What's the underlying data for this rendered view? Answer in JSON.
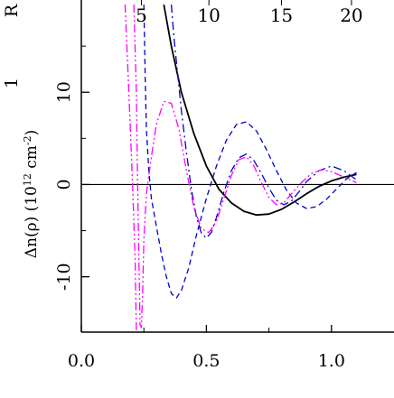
{
  "chart_data": {
    "type": "line",
    "title": "",
    "xlabel": "",
    "ylabel": "Δn(ρ) (10¹² cm⁻²)",
    "ylabel_parts": {
      "main": "Δn(ρ) (10",
      "exp1": "12",
      "mid": " cm",
      "exp2": "-2",
      "end": ")"
    },
    "xlim": [
      0.0,
      1.25
    ],
    "ylim": [
      -16,
      20
    ],
    "x_ticks": [
      "0.0",
      "0.5",
      "1.0"
    ],
    "x_tick_values": [
      0.0,
      0.5,
      1.0
    ],
    "y_ticks": [
      "-10",
      "0",
      "10"
    ],
    "y_tick_values": [
      -10,
      0,
      10
    ],
    "top_ticks": [
      "5",
      "10",
      "15",
      "20"
    ],
    "top_tick_positions": [
      0.24,
      0.51,
      0.8,
      1.08
    ],
    "partial_top_left_label": "R",
    "partial_left_label": "1",
    "zero_line": true,
    "grid": false,
    "legend": "none",
    "series": [
      {
        "style": "solid",
        "color": "#000000",
        "points": [
          [
            0.33,
            19.5
          ],
          [
            0.36,
            15
          ],
          [
            0.4,
            10
          ],
          [
            0.45,
            5.5
          ],
          [
            0.5,
            2
          ],
          [
            0.55,
            -0.5
          ],
          [
            0.6,
            -2
          ],
          [
            0.65,
            -2.9
          ],
          [
            0.7,
            -3.3
          ],
          [
            0.75,
            -3.2
          ],
          [
            0.8,
            -2.7
          ],
          [
            0.85,
            -1.9
          ],
          [
            0.9,
            -1.0
          ],
          [
            0.95,
            -0.2
          ],
          [
            1.0,
            0.4
          ],
          [
            1.05,
            0.8
          ],
          [
            1.1,
            1.1
          ]
        ]
      },
      {
        "style": "dash-dot",
        "color": "#0000cc",
        "points": [
          [
            0.36,
            19.5
          ],
          [
            0.37,
            16
          ],
          [
            0.385,
            12
          ],
          [
            0.4,
            8
          ],
          [
            0.42,
            3.5
          ],
          [
            0.44,
            -0.5
          ],
          [
            0.46,
            -3.5
          ],
          [
            0.48,
            -5.3
          ],
          [
            0.5,
            -5.8
          ],
          [
            0.52,
            -5.2
          ],
          [
            0.54,
            -3.6
          ],
          [
            0.57,
            -0.8
          ],
          [
            0.6,
            1.5
          ],
          [
            0.63,
            2.9
          ],
          [
            0.66,
            3.3
          ],
          [
            0.69,
            2.6
          ],
          [
            0.72,
            1.2
          ],
          [
            0.75,
            -0.4
          ],
          [
            0.78,
            -1.7
          ],
          [
            0.81,
            -2.2
          ],
          [
            0.84,
            -1.8
          ],
          [
            0.87,
            -0.8
          ],
          [
            0.9,
            0.3
          ],
          [
            0.95,
            1.5
          ],
          [
            1.0,
            2.0
          ],
          [
            1.05,
            1.5
          ],
          [
            1.1,
            0.5
          ]
        ]
      },
      {
        "style": "dashed",
        "color": "#0000cc",
        "points": [
          [
            0.25,
            19.5
          ],
          [
            0.255,
            12
          ],
          [
            0.26,
            6
          ],
          [
            0.27,
            1.5
          ],
          [
            0.28,
            -1.5
          ],
          [
            0.3,
            -4.5
          ],
          [
            0.32,
            -7.5
          ],
          [
            0.34,
            -10
          ],
          [
            0.36,
            -11.8
          ],
          [
            0.38,
            -12.3
          ],
          [
            0.4,
            -11.5
          ],
          [
            0.43,
            -9
          ],
          [
            0.46,
            -5.5
          ],
          [
            0.5,
            -1.5
          ],
          [
            0.54,
            2
          ],
          [
            0.58,
            4.8
          ],
          [
            0.62,
            6.5
          ],
          [
            0.66,
            6.8
          ],
          [
            0.7,
            5.8
          ],
          [
            0.74,
            3.8
          ],
          [
            0.78,
            1.5
          ],
          [
            0.82,
            -0.6
          ],
          [
            0.86,
            -2
          ],
          [
            0.9,
            -2.6
          ],
          [
            0.94,
            -2.4
          ],
          [
            0.98,
            -1.6
          ],
          [
            1.02,
            -0.5
          ],
          [
            1.06,
            0.6
          ],
          [
            1.1,
            1.3
          ]
        ]
      },
      {
        "style": "dash-dot-dot",
        "color": "#ff00ff",
        "points": [
          [
            0.21,
            19.5
          ],
          [
            0.22,
            10
          ],
          [
            0.225,
            0
          ],
          [
            0.23,
            -8
          ],
          [
            0.235,
            -15.2
          ],
          [
            0.24,
            -15.5
          ],
          [
            0.245,
            -12
          ],
          [
            0.25,
            -6
          ],
          [
            0.26,
            -1
          ],
          [
            0.28,
            3
          ],
          [
            0.3,
            6.5
          ],
          [
            0.33,
            9
          ],
          [
            0.36,
            8.8
          ],
          [
            0.39,
            6
          ],
          [
            0.42,
            1.5
          ],
          [
            0.45,
            -2.5
          ],
          [
            0.48,
            -4.8
          ],
          [
            0.51,
            -5.2
          ],
          [
            0.54,
            -4
          ],
          [
            0.57,
            -1.5
          ],
          [
            0.6,
            1
          ],
          [
            0.63,
            2.7
          ],
          [
            0.66,
            3
          ],
          [
            0.69,
            2
          ],
          [
            0.72,
            0.2
          ],
          [
            0.75,
            -1.4
          ],
          [
            0.78,
            -2.2
          ],
          [
            0.81,
            -2
          ],
          [
            0.84,
            -1
          ],
          [
            0.88,
            0.2
          ],
          [
            0.92,
            1.2
          ],
          [
            0.96,
            1.6
          ],
          [
            1.0,
            1.4
          ],
          [
            1.05,
            0.8
          ],
          [
            1.1,
            0.2
          ]
        ]
      },
      {
        "style": "dash-dot-dot",
        "color": "#ff00ff",
        "points": [
          [
            0.175,
            19.5
          ],
          [
            0.19,
            10
          ],
          [
            0.205,
            0
          ],
          [
            0.215,
            -8
          ],
          [
            0.22,
            -16
          ]
        ]
      }
    ]
  }
}
